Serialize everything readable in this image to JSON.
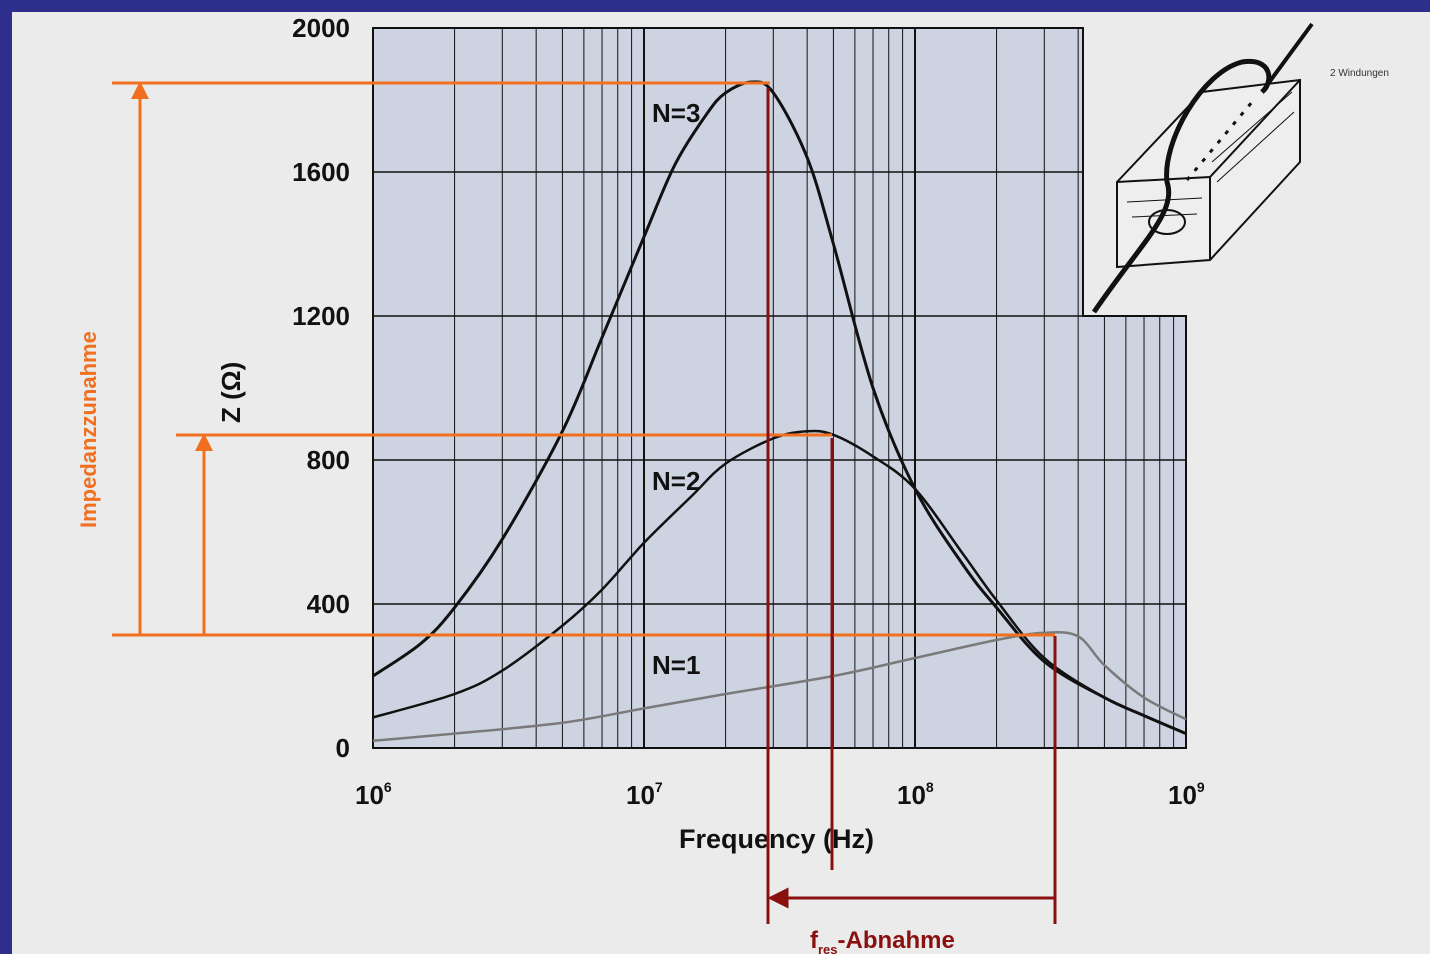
{
  "colors": {
    "frame": "#2e2f8c",
    "background": "#ebebeb",
    "plot_area": "#cdd3e1",
    "grid": "#111111",
    "curve": "#111111",
    "curve_n1": "#7a7a7a",
    "annotation_orange": "#f07020",
    "annotation_darkred": "#8a1010"
  },
  "annotations": {
    "impedance_increase": "Impedanzzunahme",
    "fres_prefix": "f",
    "fres_subscript": "res",
    "fres_suffix": "-Abnahme",
    "inset_label": "2 Windungen"
  },
  "chart_data": {
    "type": "line",
    "xscale": "log",
    "xlim": [
      1000000,
      1000000000
    ],
    "ylim": [
      0,
      2000
    ],
    "xticks": [
      {
        "base": "10",
        "exp": "6"
      },
      {
        "base": "10",
        "exp": "7"
      },
      {
        "base": "10",
        "exp": "8"
      },
      {
        "base": "10",
        "exp": "9"
      }
    ],
    "yticks": [
      "0",
      "400",
      "800",
      "1200",
      "1600",
      "2000"
    ],
    "xlabel": "Frequency (Hz)",
    "ylabel": "Z (Ω)",
    "series": [
      {
        "name": "N=3",
        "x": [
          1000000,
          1500000,
          2000000,
          3000000,
          5000000,
          7000000,
          10000000,
          13000000,
          17000000,
          20000000,
          25000000,
          30000000,
          40000000,
          50000000,
          70000000,
          100000000,
          150000000,
          200000000,
          300000000,
          500000000,
          700000000,
          1000000000
        ],
        "y": [
          200,
          290,
          390,
          580,
          880,
          1140,
          1420,
          1620,
          1760,
          1820,
          1850,
          1820,
          1640,
          1400,
          1000,
          720,
          510,
          390,
          240,
          140,
          90,
          40
        ]
      },
      {
        "name": "N=2",
        "x": [
          1000000,
          2000000,
          3000000,
          5000000,
          7000000,
          10000000,
          15000000,
          20000000,
          30000000,
          40000000,
          50000000,
          70000000,
          100000000,
          150000000,
          200000000,
          300000000,
          500000000,
          700000000,
          1000000000
        ],
        "y": [
          85,
          150,
          215,
          340,
          440,
          570,
          700,
          790,
          860,
          880,
          870,
          810,
          720,
          540,
          410,
          250,
          140,
          90,
          40
        ]
      },
      {
        "name": "N=1",
        "x": [
          1000000,
          2000000,
          5000000,
          10000000,
          20000000,
          50000000,
          100000000,
          200000000,
          300000000,
          400000000,
          500000000,
          700000000,
          1000000000
        ],
        "y": [
          20,
          40,
          70,
          110,
          150,
          200,
          250,
          300,
          320,
          310,
          230,
          140,
          80
        ]
      }
    ]
  }
}
